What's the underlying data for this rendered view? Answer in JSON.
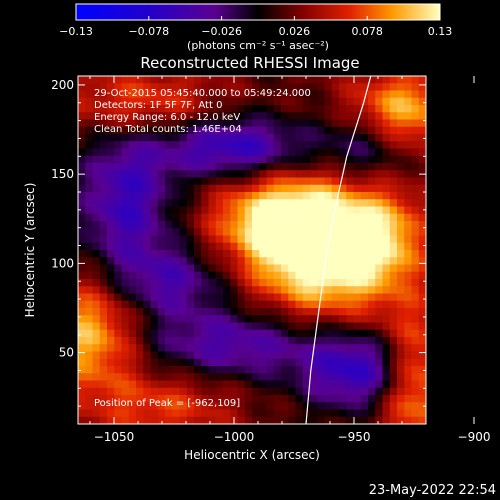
{
  "chart_data": {
    "type": "heatmap",
    "title": "Reconstructed RHESSI Image",
    "xlabel": "Heliocentric X (arcsec)",
    "ylabel": "Heliocentric Y (arcsec)",
    "x_range": [
      -1065,
      -920
    ],
    "y_range": [
      10,
      205
    ],
    "x_ticks": [
      -1050,
      -1000,
      -950,
      -900
    ],
    "y_ticks": [
      50,
      100,
      150,
      200
    ],
    "colorbar": {
      "range": [
        -0.13,
        0.13
      ],
      "ticks": [
        "-0.13",
        "-0.078",
        "-0.026",
        "0.026",
        "0.078",
        "0.13"
      ],
      "unit_label": "(photons cm⁻² s⁻¹ asec⁻²)"
    },
    "info": {
      "time": "29-Oct-2015 05:45:40.000 to 05:49:24.000",
      "detectors": "Detectors: 1F 5F 7F, Att 0",
      "energy": "Energy Range: 6.0 - 12.0 keV",
      "clean": "Clean     Total counts: 1.46E+04",
      "peak": "Position of Peak = [-962,109]"
    },
    "peak": {
      "x": -962,
      "y": 109,
      "value": 0.13
    },
    "sources": [
      {
        "x": -962,
        "y": 109,
        "sx": 22,
        "sy": 26,
        "amp": 0.15
      },
      {
        "x": -985,
        "y": 125,
        "sx": 18,
        "sy": 16,
        "amp": 0.07
      },
      {
        "x": -1060,
        "y": 60,
        "sx": 14,
        "sy": 22,
        "amp": 0.09
      },
      {
        "x": -925,
        "y": 35,
        "sx": 12,
        "sy": 26,
        "amp": 0.1
      },
      {
        "x": -930,
        "y": 185,
        "sx": 16,
        "sy": 16,
        "amp": 0.09
      },
      {
        "x": -1040,
        "y": 190,
        "sx": 22,
        "sy": 14,
        "amp": 0.06
      },
      {
        "x": -1030,
        "y": 20,
        "sx": 22,
        "sy": 14,
        "amp": 0.05
      },
      {
        "x": -935,
        "y": 115,
        "sx": 10,
        "sy": 18,
        "amp": 0.04
      },
      {
        "x": -1000,
        "y": 165,
        "sx": 22,
        "sy": 12,
        "amp": -0.09
      },
      {
        "x": -1045,
        "y": 135,
        "sx": 14,
        "sy": 30,
        "amp": -0.08
      },
      {
        "x": -945,
        "y": 40,
        "sx": 18,
        "sy": 16,
        "amp": -0.1
      },
      {
        "x": -1000,
        "y": 55,
        "sx": 26,
        "sy": 14,
        "amp": -0.07
      },
      {
        "x": -1025,
        "y": 90,
        "sx": 16,
        "sy": 14,
        "amp": -0.06
      },
      {
        "x": -945,
        "y": 165,
        "sx": 14,
        "sy": 14,
        "amp": -0.06
      }
    ],
    "limb_curve": [
      [
        -970,
        10
      ],
      [
        -968,
        40
      ],
      [
        -965,
        70
      ],
      [
        -962,
        100
      ],
      [
        -958,
        130
      ],
      [
        -953,
        160
      ],
      [
        -946,
        190
      ],
      [
        -943,
        205
      ]
    ]
  },
  "timestamp": "23-May-2022 22:54"
}
